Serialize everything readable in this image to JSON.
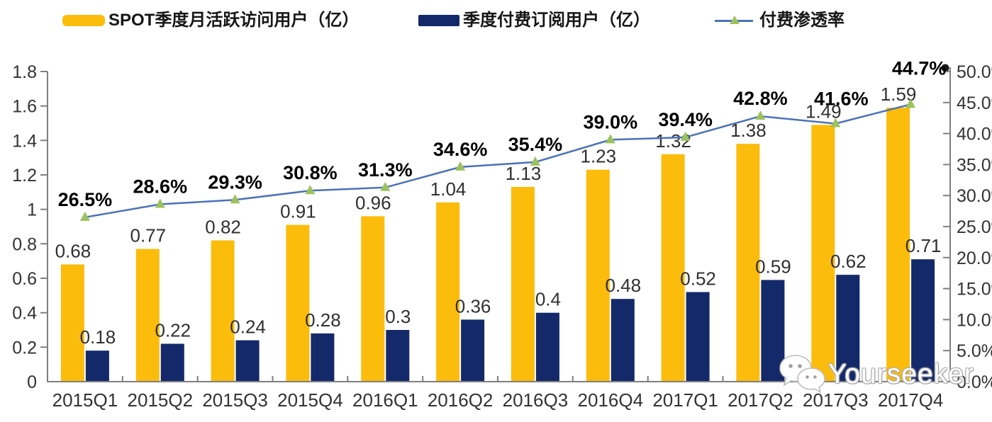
{
  "legend": {
    "items": [
      {
        "label": "SPOT季度月活跃访问用户（亿）",
        "type": "bar",
        "color": "#FBBC0C"
      },
      {
        "label": "季度付费订阅用户（亿）",
        "type": "bar",
        "color": "#13296A"
      },
      {
        "label": "付费渗透率",
        "type": "line",
        "color": "#4A72B8",
        "marker_color": "#9CC25E"
      }
    ]
  },
  "chart_data": {
    "type": "bar",
    "subtype": "grouped-bars-with-secondary-line",
    "title": "",
    "xlabel": "",
    "ylabel_left": "",
    "ylabel_right": "",
    "grid": false,
    "legend_position": "top",
    "categories": [
      "2015Q1",
      "2015Q2",
      "2015Q3",
      "2015Q4",
      "2016Q1",
      "2016Q2",
      "2016Q3",
      "2016Q4",
      "2017Q1",
      "2017Q2",
      "2017Q3",
      "2017Q4"
    ],
    "series": [
      {
        "name": "SPOT季度月活跃访问用户（亿）",
        "type": "bar",
        "axis": "left",
        "color": "#FBBC0C",
        "values": [
          0.68,
          0.77,
          0.82,
          0.91,
          0.96,
          1.04,
          1.13,
          1.23,
          1.32,
          1.38,
          1.49,
          1.59
        ],
        "labels": [
          "0.68",
          "0.77",
          "0.82",
          "0.91",
          "0.96",
          "1.04",
          "1.13",
          "1.23",
          "1.32",
          "1.38",
          "1.49",
          "1.59"
        ]
      },
      {
        "name": "季度付费订阅用户（亿）",
        "type": "bar",
        "axis": "left",
        "color": "#13296A",
        "values": [
          0.18,
          0.22,
          0.24,
          0.28,
          0.3,
          0.36,
          0.4,
          0.48,
          0.52,
          0.59,
          0.62,
          0.71
        ],
        "labels": [
          "0.18",
          "0.22",
          "0.24",
          "0.28",
          "0.3",
          "0.36",
          "0.4",
          "0.48",
          "0.52",
          "0.59",
          "0.62",
          "0.71"
        ]
      },
      {
        "name": "付费渗透率",
        "type": "line",
        "axis": "right",
        "color": "#4A72B8",
        "marker": "triangle",
        "marker_color": "#9CC25E",
        "values": [
          26.5,
          28.6,
          29.3,
          30.8,
          31.3,
          34.6,
          35.4,
          39.0,
          39.4,
          42.8,
          41.6,
          44.7
        ],
        "labels": [
          "26.5%",
          "28.6%",
          "29.3%",
          "30.8%",
          "31.3%",
          "34.6%",
          "35.4%",
          "39.0%",
          "39.4%",
          "42.8%",
          "41.6%",
          "44.7%"
        ]
      }
    ],
    "left_axis": {
      "min": 0,
      "max": 1.8,
      "step": 0.2,
      "tick_labels": [
        "0",
        "0.2",
        "0.4",
        "0.6",
        "0.8",
        "1",
        "1.2",
        "1.4",
        "1.6",
        "1.8"
      ]
    },
    "right_axis": {
      "min": 0,
      "max": 50,
      "step": 5,
      "unit": "%",
      "tick_labels": [
        "0.0%",
        "5.0%",
        "10.0%",
        "15.0%",
        "20.0%",
        "25.0%",
        "30.0%",
        "35.0%",
        "40.0%",
        "45.0%",
        "50.0%"
      ]
    }
  },
  "watermark": {
    "text": "Yourseeker",
    "icon": "wechat-chat-bubbles-icon"
  },
  "colors": {
    "bar_mau": "#FBBC0C",
    "bar_subs": "#13296A",
    "line_penetration": "#4A72B8",
    "line_marker": "#9CC25E",
    "axis": "#7F7F7F",
    "value_label": "#303030",
    "percent_label": "#000000",
    "tick_label": "#333333"
  }
}
